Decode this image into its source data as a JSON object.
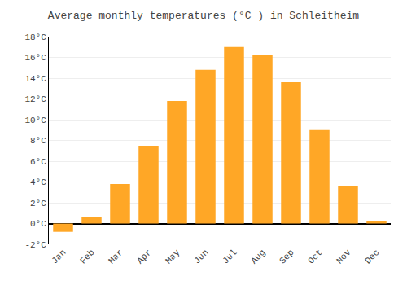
{
  "chart_data": {
    "type": "bar",
    "title": "Average monthly temperatures (°C ) in Schleitheim",
    "categories": [
      "Jan",
      "Feb",
      "Mar",
      "Apr",
      "May",
      "Jun",
      "Jul",
      "Aug",
      "Sep",
      "Oct",
      "Nov",
      "Dec"
    ],
    "values": [
      -0.8,
      0.6,
      3.8,
      7.5,
      11.8,
      14.8,
      17.0,
      16.2,
      13.6,
      9.0,
      3.6,
      0.2
    ],
    "color": "#FFA726",
    "ylim": [
      -2,
      18
    ],
    "yticks": [
      {
        "value": -2,
        "label": "-2°C"
      },
      {
        "value": 0,
        "label": "0°C"
      },
      {
        "value": 2,
        "label": "2°C"
      },
      {
        "value": 4,
        "label": "4°C"
      },
      {
        "value": 6,
        "label": "6°C"
      },
      {
        "value": 8,
        "label": "8°C"
      },
      {
        "value": 10,
        "label": "10°C"
      },
      {
        "value": 12,
        "label": "12°C"
      },
      {
        "value": 14,
        "label": "14°C"
      },
      {
        "value": 16,
        "label": "16°C"
      },
      {
        "value": 18,
        "label": "18°C"
      }
    ],
    "grid": true
  }
}
